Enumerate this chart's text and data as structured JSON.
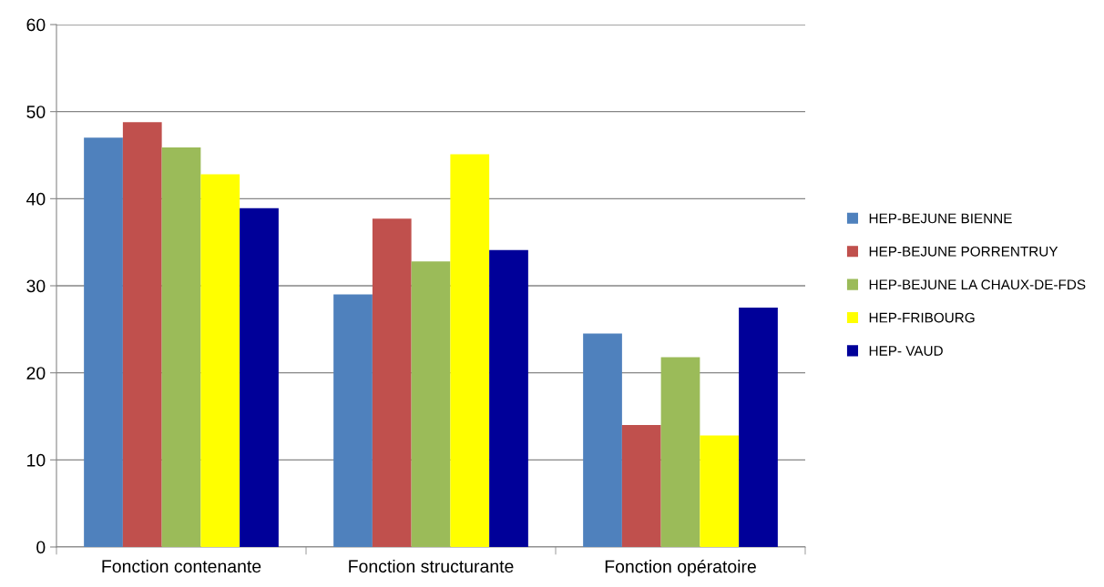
{
  "chart_data": {
    "type": "bar",
    "categories": [
      "Fonction contenante",
      "Fonction structurante",
      "Fonction opératoire"
    ],
    "series": [
      {
        "name": "HEP-BEJUNE BIENNE",
        "color": "#4f81bd",
        "values": [
          47.0,
          29.0,
          24.5
        ]
      },
      {
        "name": "HEP-BEJUNE PORRENTRUY",
        "color": "#c0504d",
        "values": [
          48.8,
          37.7,
          14.0
        ]
      },
      {
        "name": "HEP-BEJUNE LA CHAUX-DE-FDS",
        "color": "#9bbb59",
        "values": [
          45.9,
          32.8,
          21.8
        ]
      },
      {
        "name": "HEP-FRIBOURG",
        "color": "#ffff00",
        "values": [
          42.8,
          45.1,
          12.8
        ]
      },
      {
        "name": "HEP- VAUD",
        "color": "#000099",
        "values": [
          38.9,
          34.1,
          27.5
        ]
      }
    ],
    "ylim": [
      0,
      60
    ],
    "yticks": [
      0,
      10,
      20,
      30,
      40,
      50,
      60
    ],
    "grid": "y",
    "legend": "right"
  }
}
